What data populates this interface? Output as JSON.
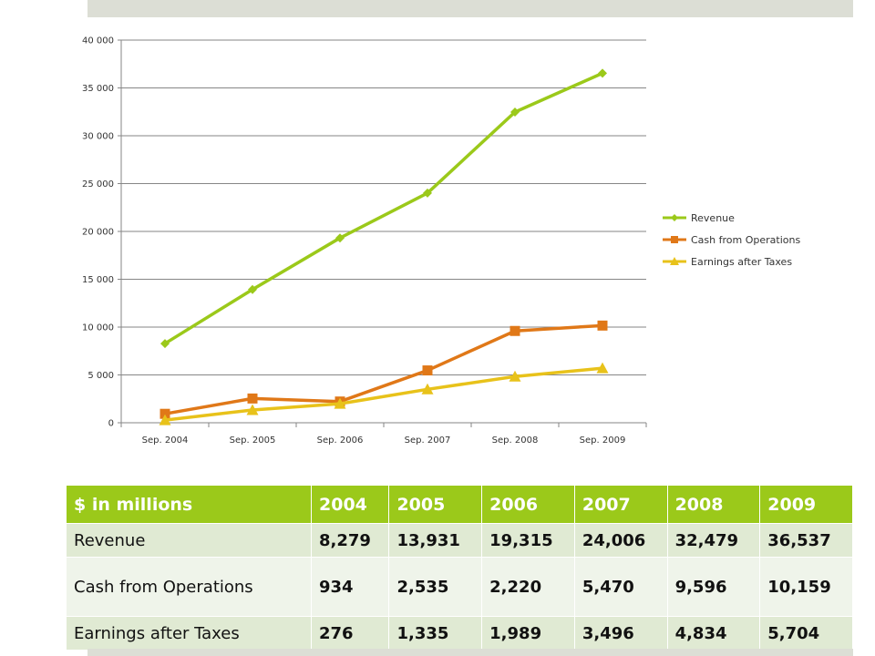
{
  "chart_data": {
    "type": "line",
    "categories": [
      "Sep. 2004",
      "Sep. 2005",
      "Sep. 2006",
      "Sep. 2007",
      "Sep. 2008",
      "Sep. 2009"
    ],
    "ylim": [
      0,
      40000
    ],
    "yticks": [
      "0",
      "5 000",
      "10 000",
      "15 000",
      "20 000",
      "25 000",
      "30 000",
      "35 000",
      "40 000"
    ],
    "grid": true,
    "legend_position": "right",
    "series": [
      {
        "name": "Revenue",
        "values": [
          8279,
          13931,
          19315,
          24006,
          32479,
          36537
        ],
        "color": "#9bc91a",
        "marker": "diamond"
      },
      {
        "name": "Cash from Operations",
        "values": [
          934,
          2535,
          2220,
          5470,
          9596,
          10159
        ],
        "color": "#e07818",
        "marker": "square"
      },
      {
        "name": "Earnings after Taxes",
        "values": [
          276,
          1335,
          1989,
          3496,
          4834,
          5704
        ],
        "color": "#e8c21a",
        "marker": "triangle"
      }
    ]
  },
  "table": {
    "header": [
      "$ in millions",
      "2004",
      "2005",
      "2006",
      "2007",
      "2008",
      "2009"
    ],
    "rows": [
      {
        "label": "Revenue",
        "values": [
          "8,279",
          "13,931",
          "19,315",
          "24,006",
          "32,479",
          "36,537"
        ]
      },
      {
        "label": "Cash from Operations",
        "values": [
          "934",
          "2,535",
          "2,220",
          "5,470",
          "9,596",
          "10,159"
        ]
      },
      {
        "label": "Earnings after Taxes",
        "values": [
          "276",
          "1,335",
          "1,989",
          "3,496",
          "4,834",
          "5,704"
        ]
      }
    ]
  },
  "colors": {
    "accent_green": "#9bc91a",
    "row_odd": "#e0ead3",
    "row_even": "#eff4ea",
    "band": "#dcded5"
  }
}
